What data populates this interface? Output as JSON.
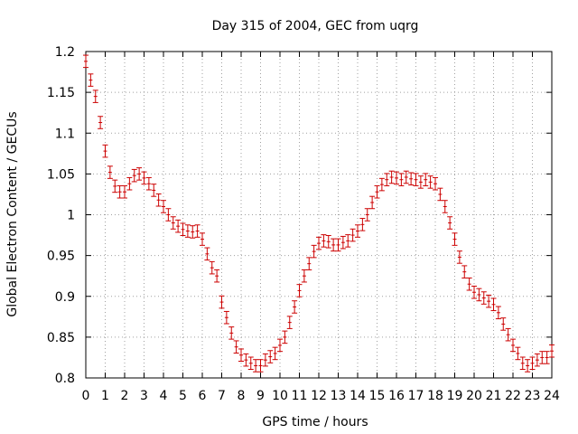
{
  "chart_data": {
    "type": "scatter",
    "title": "Day 315 of 2004, GEC from uqrg",
    "xlabel": "GPS time / hours",
    "ylabel": "Global Electron Content / GECUs",
    "xlim": [
      0,
      24
    ],
    "ylim": [
      0.8,
      1.2
    ],
    "grid": true,
    "error_bar": 0.0075,
    "series_color": "#cc0000",
    "xticks": [
      0,
      1,
      2,
      3,
      4,
      5,
      6,
      7,
      8,
      9,
      10,
      11,
      12,
      13,
      14,
      15,
      16,
      17,
      18,
      19,
      20,
      21,
      22,
      23,
      24
    ],
    "xtick_labels": [
      "0",
      "1",
      "2",
      "3",
      "4",
      "5",
      "6",
      "7",
      "8",
      "9",
      "10",
      "11",
      "12",
      "13",
      "14",
      "15",
      "16",
      "17",
      "18",
      "19",
      "20",
      "21",
      "22",
      "23",
      "24"
    ],
    "yticks": [
      0.8,
      0.85,
      0.9,
      0.95,
      1.0,
      1.05,
      1.1,
      1.15,
      1.2
    ],
    "ytick_labels": [
      "0.8",
      "0.85",
      "0.9",
      "0.95",
      "1",
      "1.05",
      "1.1",
      "1.15",
      "1.2"
    ],
    "x": [
      0,
      0.25,
      0.5,
      0.75,
      1,
      1.25,
      1.5,
      1.75,
      2,
      2.25,
      2.5,
      2.75,
      3,
      3.25,
      3.5,
      3.75,
      4,
      4.25,
      4.5,
      4.75,
      5,
      5.25,
      5.5,
      5.75,
      6,
      6.25,
      6.5,
      6.75,
      7,
      7.25,
      7.5,
      7.75,
      8,
      8.25,
      8.5,
      8.75,
      9,
      9.25,
      9.5,
      9.75,
      10,
      10.25,
      10.5,
      10.75,
      11,
      11.25,
      11.5,
      11.75,
      12,
      12.25,
      12.5,
      12.75,
      13,
      13.25,
      13.5,
      13.75,
      14,
      14.25,
      14.5,
      14.75,
      15,
      15.25,
      15.5,
      15.75,
      16,
      16.25,
      16.5,
      16.75,
      17,
      17.25,
      17.5,
      17.75,
      18,
      18.25,
      18.5,
      18.75,
      19,
      19.25,
      19.5,
      19.75,
      20,
      20.25,
      20.5,
      20.75,
      21,
      21.25,
      21.5,
      21.75,
      22,
      22.25,
      22.5,
      22.75,
      23,
      23.25,
      23.5,
      23.75,
      24
    ],
    "y": [
      1.188,
      1.165,
      1.145,
      1.113,
      1.078,
      1.052,
      1.035,
      1.028,
      1.028,
      1.038,
      1.048,
      1.05,
      1.045,
      1.038,
      1.03,
      1.018,
      1.01,
      1.0,
      0.99,
      0.986,
      0.982,
      0.98,
      0.979,
      0.98,
      0.97,
      0.952,
      0.935,
      0.925,
      0.893,
      0.874,
      0.855,
      0.838,
      0.828,
      0.822,
      0.818,
      0.815,
      0.815,
      0.822,
      0.826,
      0.83,
      0.84,
      0.85,
      0.868,
      0.887,
      0.907,
      0.925,
      0.94,
      0.955,
      0.965,
      0.968,
      0.967,
      0.963,
      0.963,
      0.966,
      0.968,
      0.975,
      0.98,
      0.988,
      1.0,
      1.015,
      1.028,
      1.037,
      1.043,
      1.046,
      1.045,
      1.043,
      1.046,
      1.044,
      1.043,
      1.04,
      1.043,
      1.04,
      1.038,
      1.025,
      1.01,
      0.99,
      0.97,
      0.948,
      0.93,
      0.915,
      0.905,
      0.902,
      0.898,
      0.894,
      0.89,
      0.88,
      0.866,
      0.853,
      0.84,
      0.83,
      0.818,
      0.815,
      0.818,
      0.822,
      0.825,
      0.825,
      0.833
    ]
  }
}
